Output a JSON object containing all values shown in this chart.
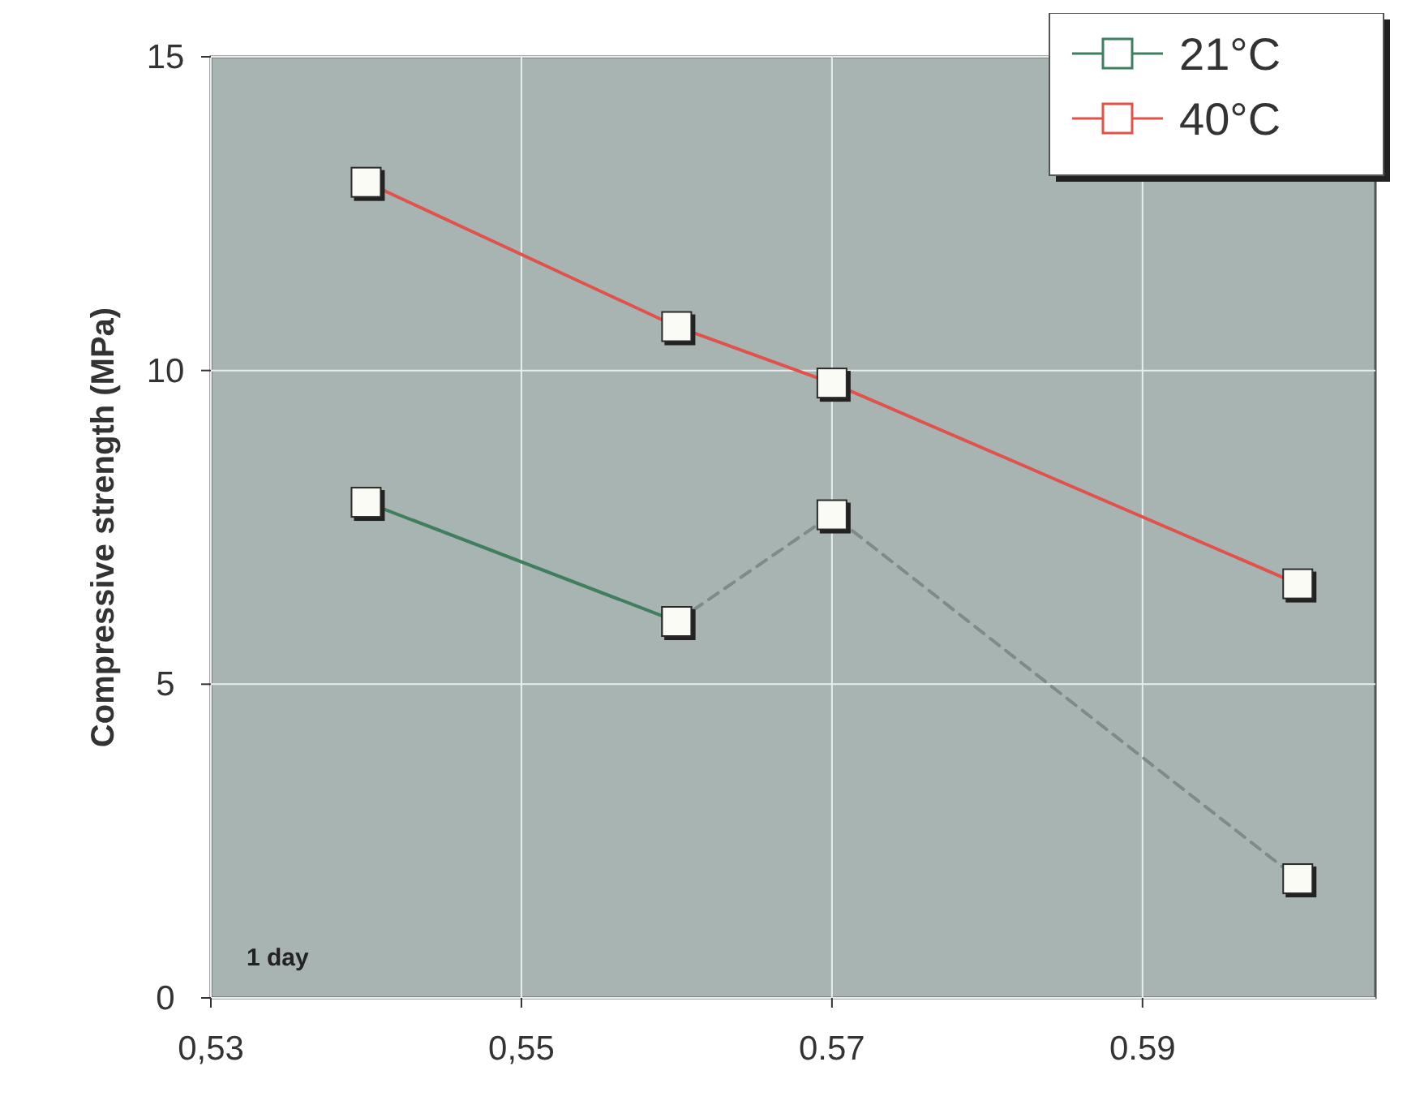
{
  "chart_data": {
    "type": "line",
    "ylabel": "Compressive strength (MPa)",
    "annotations": [
      "1 day"
    ],
    "x": [
      0.54,
      0.56,
      0.57,
      0.6
    ],
    "series": [
      {
        "name": "21°C",
        "color": "#3f7f5f",
        "values": [
          7.9,
          6.0,
          null,
          null
        ],
        "marker": "square",
        "line_style": "solid"
      },
      {
        "color": "#7f8a8a",
        "values": [
          null,
          6.0,
          7.7,
          1.9
        ],
        "marker": "square",
        "line_style": "dashed"
      },
      {
        "name": "40°C",
        "color": "#e0524a",
        "values": [
          13.0,
          10.7,
          9.8,
          6.6
        ],
        "marker": "square",
        "line_style": "solid"
      }
    ],
    "xlim": [
      0.53,
      0.605
    ],
    "xticks": [
      {
        "value": 0.53,
        "label": "0,53"
      },
      {
        "value": 0.55,
        "label": "0,55"
      },
      0.57,
      0.59
    ],
    "ylim": [
      0,
      15
    ],
    "yticks": [
      0,
      5,
      10,
      15
    ],
    "grid": true,
    "legend": "top right"
  }
}
